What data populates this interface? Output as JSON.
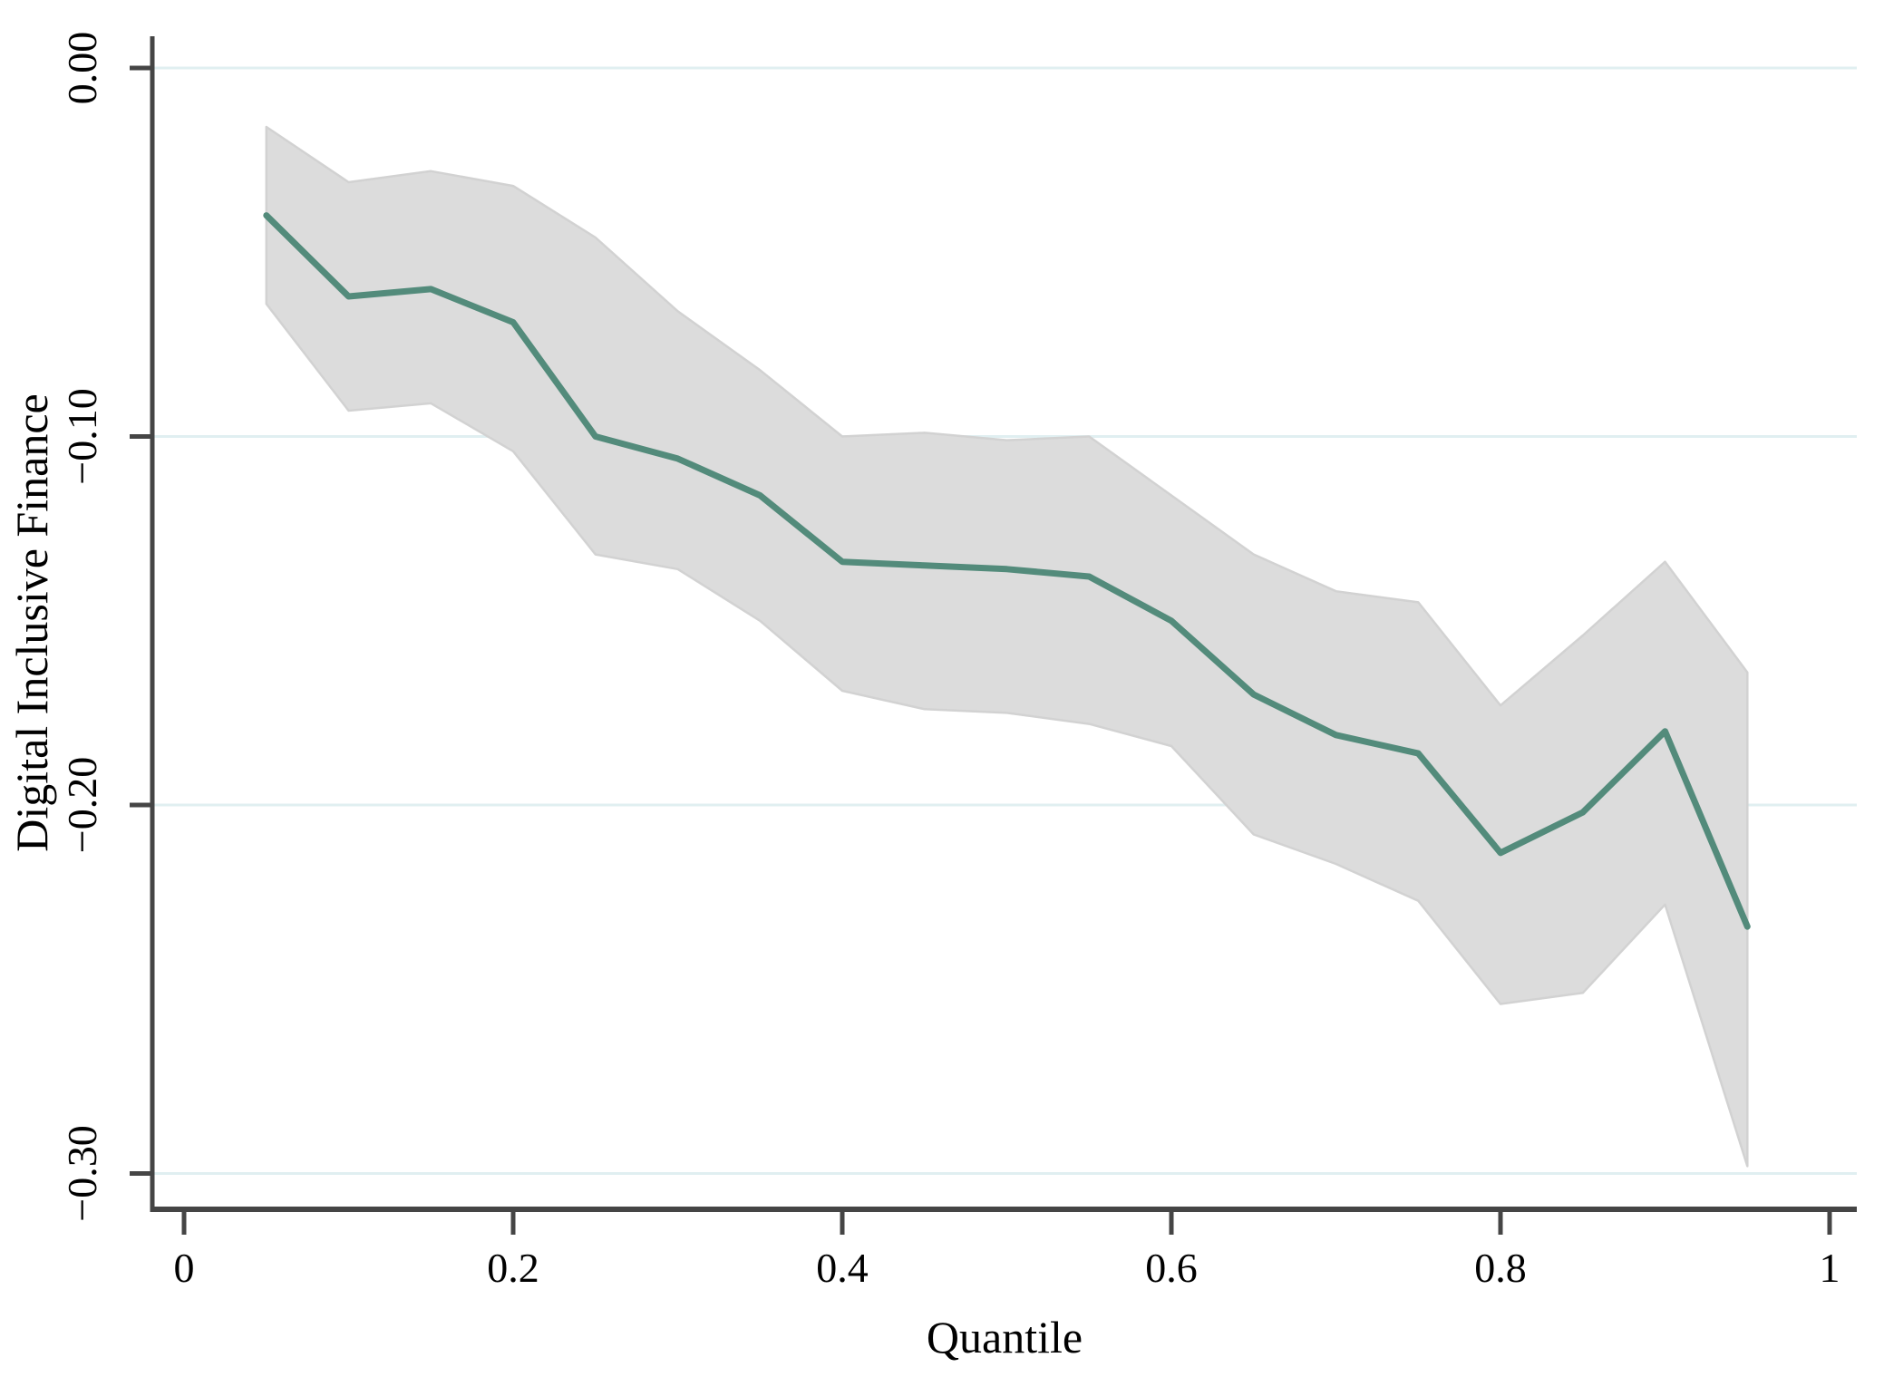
{
  "chart_data": {
    "type": "line",
    "title": "",
    "xlabel": "Quantile",
    "ylabel": "Digital Inclusive Finance",
    "legend": "none",
    "grid": "horizontal-only",
    "xlim": [
      0,
      1
    ],
    "ylim": [
      -0.3097,
      0.0086
    ],
    "x_tick_values": [
      0,
      0.2,
      0.4,
      0.6,
      0.8,
      1
    ],
    "x_tick_labels": [
      "0",
      "0.2",
      "0.4",
      "0.6",
      "0.8",
      "1"
    ],
    "y_tick_values": [
      0,
      -0.1,
      -0.2,
      -0.3
    ],
    "y_tick_labels": [
      "0.00",
      "−0.10",
      "−0.20",
      "−0.30"
    ],
    "x": [
      0.05,
      0.1,
      0.15,
      0.2,
      0.25,
      0.3,
      0.35,
      0.4,
      0.45,
      0.5,
      0.55,
      0.6,
      0.65,
      0.7,
      0.75,
      0.8,
      0.85,
      0.9,
      0.95
    ],
    "series": [
      {
        "name": "quantile-coefficient",
        "values": [
          -0.04,
          -0.062,
          -0.06,
          -0.069,
          -0.1,
          -0.106,
          -0.116,
          -0.134,
          -0.135,
          -0.136,
          -0.138,
          -0.15,
          -0.17,
          -0.181,
          -0.186,
          -0.213,
          -0.202,
          -0.18,
          -0.233
        ]
      }
    ],
    "band": {
      "name": "confidence-interval",
      "upper": [
        -0.016,
        -0.031,
        -0.028,
        -0.032,
        -0.046,
        -0.066,
        -0.082,
        -0.1,
        -0.099,
        -0.101,
        -0.1,
        -0.116,
        -0.132,
        -0.142,
        -0.145,
        -0.173,
        -0.154,
        -0.134,
        -0.164
      ],
      "lower": [
        -0.064,
        -0.093,
        -0.091,
        -0.104,
        -0.132,
        -0.136,
        -0.15,
        -0.169,
        -0.174,
        -0.175,
        -0.178,
        -0.184,
        -0.208,
        -0.216,
        -0.226,
        -0.254,
        -0.251,
        -0.227,
        -0.298
      ]
    }
  },
  "colors": {
    "line": "#538b7b",
    "band_fill": "#dcdcdc",
    "band_edge": "#d2d2d2",
    "grid": "#e0eff1",
    "axis": "#454545",
    "text": "#000000",
    "background": "#ffffff"
  }
}
